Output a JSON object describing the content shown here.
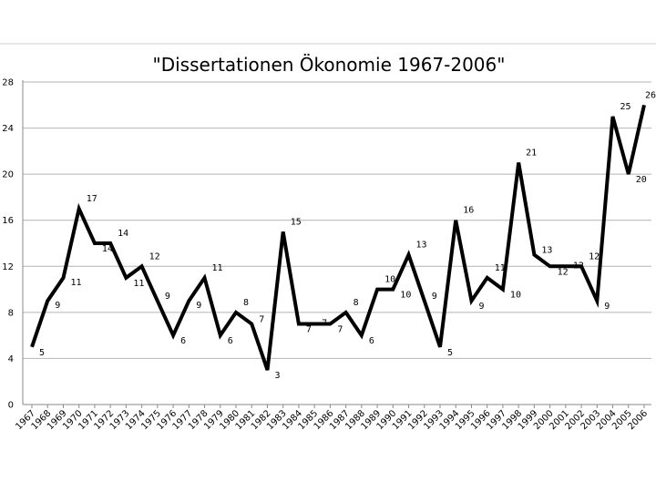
{
  "chart_data": {
    "type": "line",
    "title": "\"Dissertationen Ökonomie 1967-2006\"",
    "xlabel": "",
    "ylabel": "",
    "ylim": [
      0,
      28
    ],
    "yticks": [
      "0",
      "4",
      "8",
      "12",
      "16",
      "20",
      "24",
      "28"
    ],
    "grid": true,
    "legend": "none",
    "line_color": "#000000",
    "categories": [
      "1967",
      "1968",
      "1969",
      "1970",
      "1971",
      "1972",
      "1973",
      "1974",
      "1975",
      "1976",
      "1977",
      "1978",
      "1979",
      "1980",
      "1981",
      "1982",
      "1983",
      "1984",
      "1985",
      "1986",
      "1987",
      "1988",
      "1989",
      "1990",
      "1991",
      "1992",
      "1993",
      "1994",
      "1995",
      "1996",
      "1997",
      "1998",
      "1999",
      "2000",
      "2001",
      "2002",
      "2003",
      "2004",
      "2005",
      "2006"
    ],
    "series": [
      {
        "values": [
          5,
          9,
          11,
          17,
          14,
          14,
          11,
          12,
          9,
          6,
          9,
          11,
          6,
          8,
          7,
          3,
          15,
          7,
          7,
          7,
          8,
          6,
          10,
          10,
          13,
          9,
          5,
          16,
          9,
          11,
          10,
          21,
          13,
          12,
          12,
          12,
          9,
          25,
          20,
          26
        ],
        "labels": [
          "5",
          "9",
          "11",
          "17",
          "14",
          "14",
          "11",
          "12",
          "9",
          "6",
          "9",
          "11",
          "6",
          "8",
          "7",
          "3",
          "15",
          "7",
          "7",
          "7",
          "8",
          "6",
          "10",
          "10",
          "13",
          "9",
          "5",
          "16",
          "9",
          "11",
          "10",
          "21",
          "13",
          "12",
          "12",
          "12",
          "9",
          "25",
          "20",
          "26"
        ]
      }
    ]
  }
}
